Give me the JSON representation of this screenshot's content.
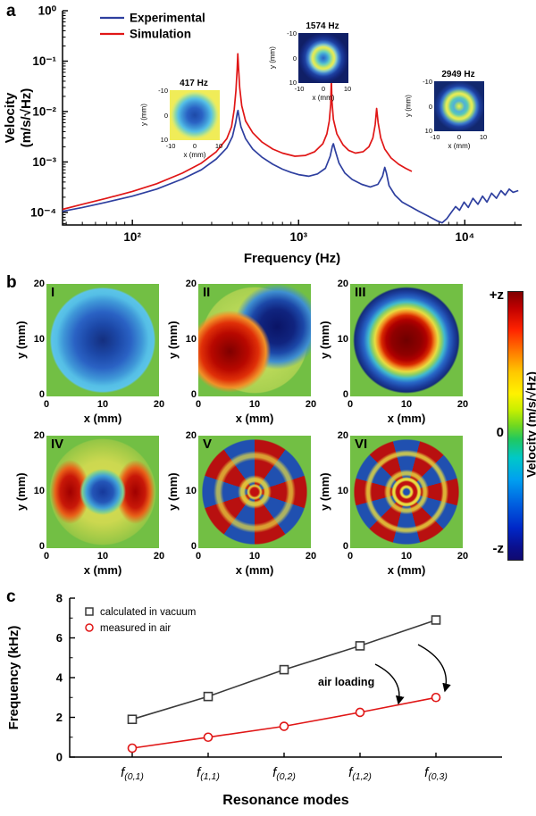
{
  "figure": {
    "panel_a_label": "a",
    "panel_b_label": "b",
    "panel_c_label": "c"
  },
  "panel_a": {
    "ylabel_line1": "Velocity",
    "ylabel_line2": "(m/s/√Hz)",
    "xlabel": "Frequency (Hz)",
    "x_ticks": [
      {
        "exp": 2,
        "label": "10²"
      },
      {
        "exp": 3,
        "label": "10³"
      },
      {
        "exp": 4,
        "label": "10⁴"
      }
    ],
    "y_ticks": [
      {
        "exp": 0,
        "label": "10⁰"
      },
      {
        "exp": -1,
        "label": "10⁻¹"
      },
      {
        "exp": -2,
        "label": "10⁻²"
      },
      {
        "exp": -3,
        "label": "10⁻³"
      },
      {
        "exp": -4,
        "label": "10⁻⁴"
      }
    ],
    "legend": [
      {
        "name": "Experimental",
        "color": "#2e3f9f"
      },
      {
        "name": "Simulation",
        "color": "#e01616"
      }
    ],
    "insets": [
      {
        "title": "417 Hz",
        "xlabel": "x (mm)",
        "ylabel": "y (mm)",
        "xticks": [
          "-10",
          "0",
          "10"
        ],
        "yticks": [
          "-10",
          "0",
          "10"
        ],
        "mode_class": "inset-map-417"
      },
      {
        "title": "1574 Hz",
        "xlabel": "x (mm)",
        "ylabel": "y (mm)",
        "xticks": [
          "-10",
          "0",
          "10"
        ],
        "yticks": [
          "-10",
          "0",
          "10"
        ],
        "mode_class": "inset-map-1574"
      },
      {
        "title": "2949 Hz",
        "xlabel": "x (mm)",
        "ylabel": "y (mm)",
        "xticks": [
          "-10",
          "0",
          "10"
        ],
        "yticks": [
          "-10",
          "0",
          "10"
        ],
        "mode_class": "inset-map-2949"
      }
    ]
  },
  "panel_b": {
    "xlabel": "x (mm)",
    "ylabel": "y (mm)",
    "ticks": [
      "0",
      "10",
      "20"
    ],
    "maps": [
      {
        "numeral": "I",
        "mode_class": "map-1"
      },
      {
        "numeral": "II",
        "mode_class": "map-2"
      },
      {
        "numeral": "III",
        "mode_class": "map-3"
      },
      {
        "numeral": "IV",
        "mode_class": "map-4"
      },
      {
        "numeral": "V",
        "mode_class": "map-5"
      },
      {
        "numeral": "VI",
        "mode_class": "map-6"
      }
    ],
    "colorbar": {
      "top_label": "+z",
      "mid_label": "0",
      "bottom_label": "-z",
      "axis_label": "Velocity (m/s/√Hz)"
    }
  },
  "panel_c": {
    "ylabel": "Frequency (kHz)",
    "xlabel": "Resonance modes",
    "annotation": "air loading",
    "y_ticks": [
      0,
      2,
      4,
      6,
      8
    ],
    "legend": [
      {
        "name": "calculated in vacuum",
        "color": "#3a3a3a",
        "marker": "square"
      },
      {
        "name": "measured in air",
        "color": "#e01616",
        "marker": "circle"
      }
    ]
  },
  "chart_data": [
    {
      "type": "line",
      "title": "",
      "xlabel": "Frequency (Hz)",
      "ylabel": "Velocity (m/s/√Hz)",
      "xscale": "log",
      "yscale": "log",
      "xlim": [
        38,
        22000
      ],
      "ylim": [
        5.6e-05,
        1
      ],
      "legend_position": "top-left",
      "grid": false,
      "series": [
        {
          "name": "Experimental",
          "color": "#2e3f9f",
          "points": [
            [
              38,
              0.000105
            ],
            [
              50,
              0.000125
            ],
            [
              70,
              0.00016
            ],
            [
              100,
              0.00021
            ],
            [
              140,
              0.00029
            ],
            [
              200,
              0.00046
            ],
            [
              260,
              0.0007
            ],
            [
              320,
              0.00115
            ],
            [
              370,
              0.0019
            ],
            [
              400,
              0.0032
            ],
            [
              418,
              0.006
            ],
            [
              428,
              0.0095
            ],
            [
              432,
              0.0105
            ],
            [
              438,
              0.008
            ],
            [
              450,
              0.005
            ],
            [
              480,
              0.0029
            ],
            [
              530,
              0.0018
            ],
            [
              600,
              0.00125
            ],
            [
              700,
              0.0009
            ],
            [
              800,
              0.00072
            ],
            [
              900,
              0.00062
            ],
            [
              1000,
              0.00056
            ],
            [
              1150,
              0.00052
            ],
            [
              1300,
              0.00058
            ],
            [
              1450,
              0.00075
            ],
            [
              1550,
              0.0013
            ],
            [
              1600,
              0.0021
            ],
            [
              1620,
              0.0023
            ],
            [
              1660,
              0.0017
            ],
            [
              1750,
              0.00095
            ],
            [
              1900,
              0.0006
            ],
            [
              2100,
              0.00045
            ],
            [
              2400,
              0.00036
            ],
            [
              2700,
              0.00032
            ],
            [
              3000,
              0.00036
            ],
            [
              3200,
              0.00052
            ],
            [
              3300,
              0.00078
            ],
            [
              3380,
              0.0006
            ],
            [
              3500,
              0.00034
            ],
            [
              3800,
              0.00022
            ],
            [
              4200,
              0.00016
            ],
            [
              4700,
              0.00013
            ],
            [
              5300,
              0.000105
            ],
            [
              6000,
              8.5e-05
            ],
            [
              6800,
              6.8e-05
            ],
            [
              7300,
              6.2e-05
            ],
            [
              7800,
              7.5e-05
            ],
            [
              8300,
              0.0001
            ],
            [
              8800,
              0.00013
            ],
            [
              9300,
              0.00011
            ],
            [
              9900,
              0.00016
            ],
            [
              10500,
              0.000125
            ],
            [
              11200,
              0.00019
            ],
            [
              12000,
              0.000145
            ],
            [
              12800,
              0.00021
            ],
            [
              13600,
              0.00016
            ],
            [
              14500,
              0.00024
            ],
            [
              15500,
              0.00019
            ],
            [
              16500,
              0.00027
            ],
            [
              17500,
              0.00022
            ],
            [
              18500,
              0.00029
            ],
            [
              19500,
              0.00025
            ],
            [
              21000,
              0.00027
            ]
          ]
        },
        {
          "name": "Simulation",
          "color": "#e01616",
          "points": [
            [
              38,
              0.000115
            ],
            [
              50,
              0.000145
            ],
            [
              70,
              0.00019
            ],
            [
              100,
              0.00026
            ],
            [
              140,
              0.00037
            ],
            [
              200,
              0.0006
            ],
            [
              260,
              0.00095
            ],
            [
              320,
              0.0016
            ],
            [
              370,
              0.0029
            ],
            [
              395,
              0.005
            ],
            [
              410,
              0.011
            ],
            [
              420,
              0.026
            ],
            [
              427,
              0.07
            ],
            [
              431,
              0.14
            ],
            [
              435,
              0.075
            ],
            [
              442,
              0.03
            ],
            [
              455,
              0.013
            ],
            [
              480,
              0.0065
            ],
            [
              530,
              0.0038
            ],
            [
              600,
              0.0025
            ],
            [
              700,
              0.0018
            ],
            [
              800,
              0.0015
            ],
            [
              950,
              0.0013
            ],
            [
              1100,
              0.00135
            ],
            [
              1250,
              0.0016
            ],
            [
              1400,
              0.0023
            ],
            [
              1480,
              0.0036
            ],
            [
              1530,
              0.0065
            ],
            [
              1560,
              0.014
            ],
            [
              1574,
              0.045
            ],
            [
              1588,
              0.016
            ],
            [
              1620,
              0.007
            ],
            [
              1700,
              0.0036
            ],
            [
              1850,
              0.0022
            ],
            [
              2000,
              0.0017
            ],
            [
              2200,
              0.0015
            ],
            [
              2450,
              0.0016
            ],
            [
              2650,
              0.002
            ],
            [
              2800,
              0.003
            ],
            [
              2890,
              0.0055
            ],
            [
              2949,
              0.0115
            ],
            [
              3010,
              0.006
            ],
            [
              3120,
              0.003
            ],
            [
              3300,
              0.0018
            ],
            [
              3600,
              0.0012
            ],
            [
              4000,
              0.0009
            ],
            [
              4400,
              0.00075
            ],
            [
              4800,
              0.00065
            ]
          ]
        }
      ],
      "annotations": [
        "417 Hz",
        "1574 Hz",
        "2949 Hz"
      ]
    },
    {
      "type": "line",
      "title": "",
      "categories": [
        "f(0,1)",
        "f(1,1)",
        "f(0,2)",
        "f(1,2)",
        "f(0,3)"
      ],
      "xlabel": "Resonance modes",
      "ylabel": "Frequency (kHz)",
      "ylim": [
        0,
        8
      ],
      "y_ticks": [
        0,
        2,
        4,
        6,
        8
      ],
      "legend_position": "top-left",
      "grid": false,
      "annotation": "air loading",
      "series": [
        {
          "name": "calculated in vacuum",
          "color": "#3a3a3a",
          "marker": "square",
          "values": [
            1.9,
            3.05,
            4.4,
            5.6,
            6.9
          ]
        },
        {
          "name": "measured in air",
          "color": "#e01616",
          "marker": "circle",
          "values": [
            0.45,
            1.0,
            1.55,
            2.25,
            3.0
          ]
        }
      ]
    }
  ]
}
